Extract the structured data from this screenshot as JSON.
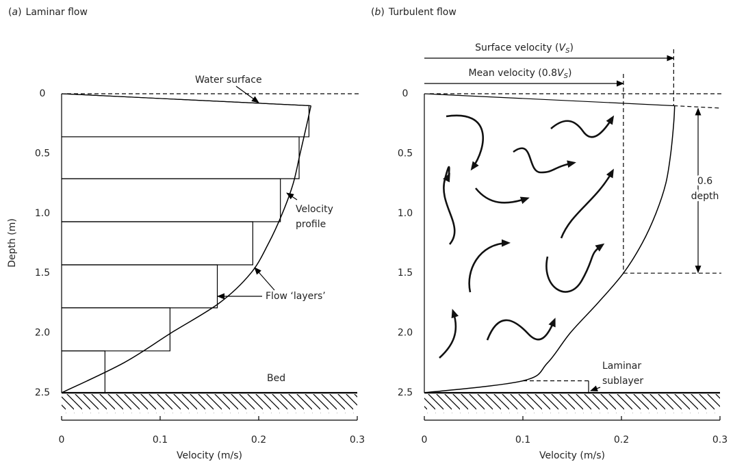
{
  "chart_data": [
    {
      "type": "line",
      "panel": [
        "(",
        "a",
        ")"
      ],
      "title": "Laminar flow",
      "x_label": "Velocity (m/s)",
      "y_label": "Depth (m)",
      "xlim": [
        0,
        0.3
      ],
      "xticks": [
        0,
        0.1,
        0.2,
        0.3
      ],
      "ylim": [
        2.5,
        0
      ],
      "yticks": [
        0,
        0.5,
        {
          "value": 1,
          "label": "1.0"
        },
        1.5,
        {
          "value": 2,
          "label": "2.0"
        },
        2.5
      ],
      "x": [
        0,
        0.063,
        0.111,
        0.16,
        0.192,
        0.21,
        0.224,
        0.235,
        0.242,
        0.249,
        0.253
      ],
      "values": [
        2.5,
        2.25,
        2.0,
        1.75,
        1.5,
        1.25,
        1.0,
        0.75,
        0.5,
        0.25,
        0.1
      ],
      "color": "#000000",
      "surface_x": [
        0,
        0.253
      ],
      "surface_y": [
        0,
        0.1
      ],
      "layer_edges": [
        0,
        0.36,
        0.71,
        1.07,
        1.43,
        1.79,
        2.15,
        2.5
      ],
      "layer_velocities": [
        0.251,
        0.241,
        0.222,
        0.194,
        0.158,
        0.11,
        0.044
      ],
      "annotations": {
        "water_surface": "Water surface",
        "velocity_profile": [
          "Velocity",
          "profile"
        ],
        "flow_layers": "Flow ‘layers’",
        "bed": "Bed"
      }
    },
    {
      "type": "line",
      "panel": [
        "(",
        "b",
        ")"
      ],
      "title": "Turbulent flow",
      "x_label": "Velocity (m/s)",
      "xlim": [
        0,
        0.3
      ],
      "xticks": [
        0,
        0.1,
        0.2,
        0.3
      ],
      "ylim": [
        2.5,
        0
      ],
      "yticks": [
        0,
        0.5,
        {
          "value": 1,
          "label": "1.0"
        },
        1.5,
        {
          "value": 2,
          "label": "2.0"
        },
        2.5
      ],
      "x": [
        0,
        0.1,
        0.125,
        0.148,
        0.176,
        0.202,
        0.221,
        0.235,
        0.245,
        0.25,
        0.253,
        0.254
      ],
      "values": [
        2.5,
        2.4,
        2.25,
        2.0,
        1.75,
        1.5,
        1.25,
        1.0,
        0.75,
        0.5,
        0.25,
        0.1
      ],
      "color": "#000000",
      "surface_x": [
        0,
        0.253,
        0.3
      ],
      "surface_y": [
        0,
        0.1,
        0.12
      ],
      "surface_velocity": 0.253,
      "mean_velocity": 0.202,
      "measure_depth": 1.5,
      "sublayer_depth": 2.4,
      "annotations": {
        "surface_label": [
          "Surface velocity (",
          "V",
          "S",
          ")"
        ],
        "mean_label": [
          "Mean velocity (0.8",
          "V",
          "S",
          ")"
        ],
        "depth_label": [
          "0.6",
          "depth"
        ],
        "sublayer_label": [
          "Laminar",
          "sublayer"
        ]
      }
    }
  ]
}
